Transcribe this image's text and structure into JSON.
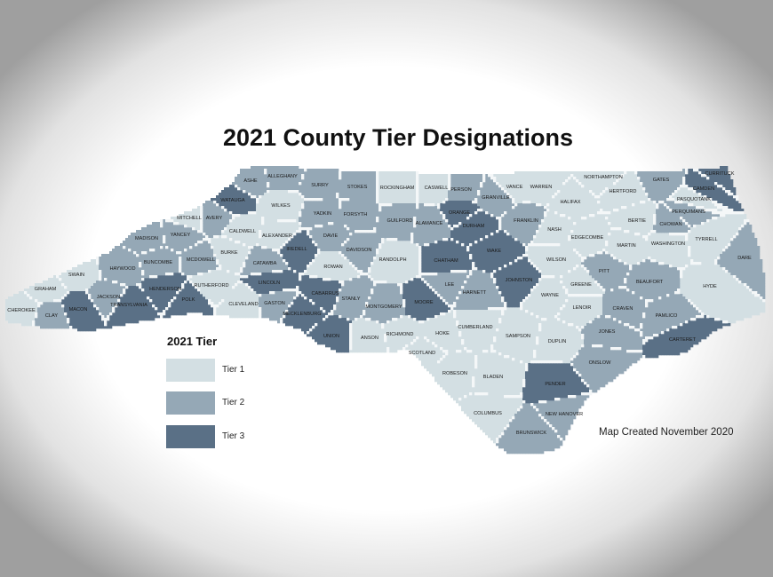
{
  "title": "2021 County Tier Designations",
  "note": "Map Created November 2020",
  "legend": {
    "title": "2021 Tier",
    "items": [
      {
        "label": "Tier 1",
        "tier": 1,
        "color": "#d3dfe3"
      },
      {
        "label": "Tier 2",
        "tier": 2,
        "color": "#95a8b6"
      },
      {
        "label": "Tier 3",
        "tier": 3,
        "color": "#5a7086"
      }
    ]
  },
  "counties": [
    {
      "name": "CHEROKEE",
      "tier": 1
    },
    {
      "name": "CLAY",
      "tier": 2
    },
    {
      "name": "GRAHAM",
      "tier": 1
    },
    {
      "name": "SWAIN",
      "tier": 1
    },
    {
      "name": "MACON",
      "tier": 3
    },
    {
      "name": "JACKSON",
      "tier": 2
    },
    {
      "name": "HAYWOOD",
      "tier": 2
    },
    {
      "name": "TRANSYLVANIA",
      "tier": 3
    },
    {
      "name": "HENDERSON",
      "tier": 3
    },
    {
      "name": "POLK",
      "tier": 3
    },
    {
      "name": "MADISON",
      "tier": 2
    },
    {
      "name": "YANCEY",
      "tier": 2
    },
    {
      "name": "MITCHELL",
      "tier": 1
    },
    {
      "name": "AVERY",
      "tier": 2
    },
    {
      "name": "BUNCOMBE",
      "tier": 2
    },
    {
      "name": "MCDOWELL",
      "tier": 2
    },
    {
      "name": "RUTHERFORD",
      "tier": 1
    },
    {
      "name": "BURKE",
      "tier": 1
    },
    {
      "name": "CALDWELL",
      "tier": 1
    },
    {
      "name": "WATAUGA",
      "tier": 3
    },
    {
      "name": "ASHE",
      "tier": 2
    },
    {
      "name": "ALLEGHANY",
      "tier": 2
    },
    {
      "name": "WILKES",
      "tier": 1
    },
    {
      "name": "ALEXANDER",
      "tier": 1
    },
    {
      "name": "CATAWBA",
      "tier": 2
    },
    {
      "name": "LINCOLN",
      "tier": 3
    },
    {
      "name": "CLEVELAND",
      "tier": 1
    },
    {
      "name": "GASTON",
      "tier": 2
    },
    {
      "name": "IREDELL",
      "tier": 3
    },
    {
      "name": "SURRY",
      "tier": 2
    },
    {
      "name": "STOKES",
      "tier": 2
    },
    {
      "name": "YADKIN",
      "tier": 2
    },
    {
      "name": "FORSYTH",
      "tier": 2
    },
    {
      "name": "DAVIE",
      "tier": 2
    },
    {
      "name": "DAVIDSON",
      "tier": 2
    },
    {
      "name": "ROWAN",
      "tier": 1
    },
    {
      "name": "CABARRUS",
      "tier": 3
    },
    {
      "name": "MECKLENBURG",
      "tier": 3
    },
    {
      "name": "STANLY",
      "tier": 2
    },
    {
      "name": "UNION",
      "tier": 3
    },
    {
      "name": "ANSON",
      "tier": 1
    },
    {
      "name": "RICHMOND",
      "tier": 1
    },
    {
      "name": "MONTGOMERY",
      "tier": 2
    },
    {
      "name": "RANDOLPH",
      "tier": 1
    },
    {
      "name": "ROCKINGHAM",
      "tier": 1
    },
    {
      "name": "CASWELL",
      "tier": 1
    },
    {
      "name": "GUILFORD",
      "tier": 2
    },
    {
      "name": "ALAMANCE",
      "tier": 2
    },
    {
      "name": "PERSON",
      "tier": 2
    },
    {
      "name": "ORANGE",
      "tier": 3
    },
    {
      "name": "DURHAM",
      "tier": 3
    },
    {
      "name": "GRANVILLE",
      "tier": 2
    },
    {
      "name": "CHATHAM",
      "tier": 3
    },
    {
      "name": "MOORE",
      "tier": 3
    },
    {
      "name": "LEE",
      "tier": 2
    },
    {
      "name": "HARNETT",
      "tier": 2
    },
    {
      "name": "HOKE",
      "tier": 1
    },
    {
      "name": "SCOTLAND",
      "tier": 1
    },
    {
      "name": "CUMBERLAND",
      "tier": 1
    },
    {
      "name": "SAMPSON",
      "tier": 1
    },
    {
      "name": "ROBESON",
      "tier": 1
    },
    {
      "name": "BLADEN",
      "tier": 1
    },
    {
      "name": "COLUMBUS",
      "tier": 1
    },
    {
      "name": "BRUNSWICK",
      "tier": 2
    },
    {
      "name": "NEW HANOVER",
      "tier": 2
    },
    {
      "name": "PENDER",
      "tier": 3
    },
    {
      "name": "DUPLIN",
      "tier": 1
    },
    {
      "name": "WAKE",
      "tier": 3
    },
    {
      "name": "JOHNSTON",
      "tier": 3
    },
    {
      "name": "VANCE",
      "tier": 1
    },
    {
      "name": "WARREN",
      "tier": 1
    },
    {
      "name": "FRANKLIN",
      "tier": 2
    },
    {
      "name": "NASH",
      "tier": 1
    },
    {
      "name": "HALIFAX",
      "tier": 1
    },
    {
      "name": "NORTHAMPTON",
      "tier": 1
    },
    {
      "name": "HERTFORD",
      "tier": 1
    },
    {
      "name": "GATES",
      "tier": 2
    },
    {
      "name": "EDGECOMBE",
      "tier": 1
    },
    {
      "name": "WILSON",
      "tier": 1
    },
    {
      "name": "WAYNE",
      "tier": 1
    },
    {
      "name": "GREENE",
      "tier": 1
    },
    {
      "name": "LENOIR",
      "tier": 1
    },
    {
      "name": "PITT",
      "tier": 2
    },
    {
      "name": "BERTIE",
      "tier": 1
    },
    {
      "name": "MARTIN",
      "tier": 1
    },
    {
      "name": "WASHINGTON",
      "tier": 1
    },
    {
      "name": "CHOWAN",
      "tier": 2
    },
    {
      "name": "PERQUIMANS",
      "tier": 2
    },
    {
      "name": "PASQUOTANK",
      "tier": 1
    },
    {
      "name": "CAMDEN",
      "tier": 3
    },
    {
      "name": "CURRITUCK",
      "tier": 3
    },
    {
      "name": "TYRRELL",
      "tier": 1
    },
    {
      "name": "DARE",
      "tier": 2
    },
    {
      "name": "HYDE",
      "tier": 1
    },
    {
      "name": "BEAUFORT",
      "tier": 2
    },
    {
      "name": "CRAVEN",
      "tier": 2
    },
    {
      "name": "PAMLICO",
      "tier": 2
    },
    {
      "name": "JONES",
      "tier": 2
    },
    {
      "name": "ONSLOW",
      "tier": 2
    },
    {
      "name": "CARTERET",
      "tier": 3
    }
  ]
}
